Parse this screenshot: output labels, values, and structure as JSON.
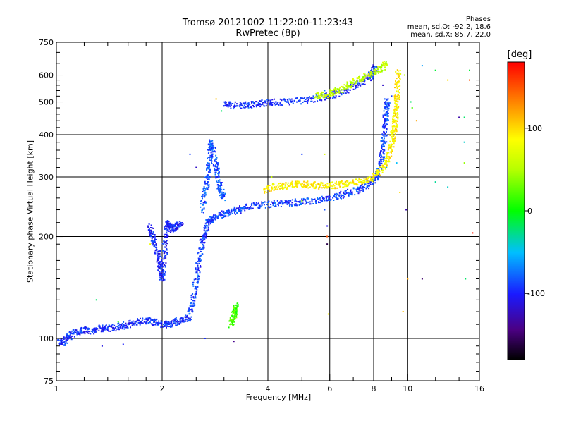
{
  "chart_data": {
    "type": "scatter",
    "title": "Tromsø 20121002 11:22:00-11:23:43",
    "subtitle": "RwPretec (8p)",
    "xlabel": "Frequency [MHz]",
    "ylabel": "Stationary phase Virtual Height [km]",
    "x_scale": "log",
    "y_scale": "log",
    "xlim": [
      1,
      16
    ],
    "ylim": [
      75,
      750
    ],
    "x_ticks": [
      1,
      2,
      4,
      6,
      8,
      10,
      16
    ],
    "y_ticks": [
      75,
      100,
      200,
      300,
      400,
      500,
      600,
      750
    ],
    "grid_x": [
      2,
      4,
      6,
      8,
      10
    ],
    "grid_y": [
      100,
      200,
      300,
      400,
      500,
      600
    ],
    "grid": true,
    "stats": {
      "heading": "Phases",
      "line_o": "mean, sd,O: -92.2, 18.6",
      "line_x": "mean, sd,X: 85.7, 22.0"
    },
    "colorbar": {
      "label": "[deg]",
      "range": [
        -180,
        180
      ],
      "ticks": [
        100,
        0,
        -100
      ],
      "colormap": "rainbow"
    },
    "traces": [
      {
        "phase": -95,
        "points": [
          [
            1.02,
            98
          ],
          [
            1.05,
            97
          ],
          [
            1.08,
            101
          ],
          [
            1.12,
            104
          ],
          [
            1.18,
            106
          ],
          [
            1.25,
            105
          ],
          [
            1.32,
            107
          ],
          [
            1.4,
            107
          ],
          [
            1.5,
            108
          ],
          [
            1.6,
            110
          ],
          [
            1.7,
            112
          ],
          [
            1.8,
            113
          ],
          [
            1.9,
            112
          ],
          [
            2.0,
            110
          ],
          [
            2.1,
            110
          ],
          [
            2.2,
            112
          ],
          [
            2.3,
            114
          ],
          [
            2.4,
            115
          ]
        ]
      },
      {
        "phase": -90,
        "points": [
          [
            2.4,
            118
          ],
          [
            2.45,
            130
          ],
          [
            2.5,
            150
          ],
          [
            2.55,
            170
          ],
          [
            2.6,
            190
          ],
          [
            2.65,
            205
          ],
          [
            2.7,
            220
          ],
          [
            2.8,
            228
          ],
          [
            2.95,
            232
          ],
          [
            3.1,
            235
          ],
          [
            3.3,
            240
          ],
          [
            3.5,
            245
          ],
          [
            3.8,
            248
          ],
          [
            4.2,
            250
          ],
          [
            4.6,
            252
          ],
          [
            5.0,
            253
          ],
          [
            5.5,
            256
          ],
          [
            6.0,
            260
          ],
          [
            6.5,
            266
          ],
          [
            7.0,
            272
          ],
          [
            7.5,
            280
          ],
          [
            8.0,
            292
          ],
          [
            8.2,
            305
          ],
          [
            8.4,
            330
          ],
          [
            8.5,
            360
          ],
          [
            8.6,
            400
          ],
          [
            8.65,
            440
          ],
          [
            8.7,
            480
          ],
          [
            8.75,
            510
          ]
        ]
      },
      {
        "phase": -100,
        "points": [
          [
            1.85,
            215
          ],
          [
            1.88,
            200
          ],
          [
            1.92,
            185
          ],
          [
            1.96,
            170
          ],
          [
            1.98,
            160
          ],
          [
            2.0,
            150
          ],
          [
            2.03,
            175
          ],
          [
            2.05,
            200
          ],
          [
            2.08,
            220
          ],
          [
            2.1,
            215
          ],
          [
            2.15,
            210
          ],
          [
            2.2,
            215
          ],
          [
            2.28,
            218
          ]
        ]
      },
      {
        "phase": -85,
        "points": [
          [
            2.6,
            240
          ],
          [
            2.65,
            270
          ],
          [
            2.7,
            300
          ],
          [
            2.72,
            330
          ],
          [
            2.75,
            380
          ],
          [
            2.8,
            360
          ],
          [
            2.85,
            320
          ],
          [
            2.9,
            290
          ],
          [
            2.95,
            270
          ],
          [
            3.0,
            260
          ]
        ]
      },
      {
        "phase": -95,
        "points": [
          [
            3.0,
            490
          ],
          [
            3.2,
            488
          ],
          [
            3.5,
            490
          ],
          [
            3.8,
            495
          ],
          [
            4.1,
            498
          ],
          [
            4.5,
            500
          ],
          [
            5.0,
            505
          ],
          [
            5.5,
            512
          ],
          [
            6.0,
            520
          ],
          [
            6.5,
            535
          ],
          [
            7.0,
            555
          ],
          [
            7.5,
            575
          ],
          [
            7.8,
            595
          ],
          [
            8.0,
            615
          ],
          [
            8.1,
            630
          ]
        ]
      },
      {
        "phase": 90,
        "points": [
          [
            3.9,
            275
          ],
          [
            4.2,
            280
          ],
          [
            4.5,
            283
          ],
          [
            4.8,
            285
          ],
          [
            5.2,
            285
          ],
          [
            5.6,
            283
          ],
          [
            6.0,
            283
          ],
          [
            6.5,
            285
          ],
          [
            7.0,
            288
          ],
          [
            7.5,
            293
          ],
          [
            8.0,
            300
          ],
          [
            8.5,
            315
          ],
          [
            8.8,
            340
          ],
          [
            9.0,
            370
          ],
          [
            9.1,
            400
          ],
          [
            9.2,
            430
          ],
          [
            9.25,
            460
          ],
          [
            9.3,
            500
          ],
          [
            9.35,
            560
          ],
          [
            9.4,
            620
          ]
        ]
      },
      {
        "phase": 55,
        "points": [
          [
            5.5,
            520
          ],
          [
            5.8,
            525
          ],
          [
            6.2,
            535
          ],
          [
            6.6,
            550
          ],
          [
            7.0,
            570
          ],
          [
            7.5,
            590
          ],
          [
            8.0,
            610
          ],
          [
            8.4,
            630
          ],
          [
            8.7,
            650
          ]
        ]
      },
      {
        "phase": 20,
        "points": [
          [
            3.15,
            110
          ],
          [
            3.18,
            115
          ],
          [
            3.22,
            120
          ],
          [
            3.25,
            125
          ]
        ]
      }
    ],
    "scatter_points": [
      {
        "x": 2.85,
        "y": 510,
        "phase": 110
      },
      {
        "x": 2.95,
        "y": 470,
        "phase": -20
      },
      {
        "x": 2.75,
        "y": 380,
        "phase": -60
      },
      {
        "x": 3.2,
        "y": 98,
        "phase": -140
      },
      {
        "x": 5.0,
        "y": 350,
        "phase": -90
      },
      {
        "x": 5.8,
        "y": 350,
        "phase": 70
      },
      {
        "x": 5.8,
        "y": 240,
        "phase": -85
      },
      {
        "x": 5.9,
        "y": 215,
        "phase": -110
      },
      {
        "x": 5.9,
        "y": 200,
        "phase": 150
      },
      {
        "x": 5.9,
        "y": 190,
        "phase": -160
      },
      {
        "x": 5.95,
        "y": 118,
        "phase": 90
      },
      {
        "x": 5.0,
        "y": 255,
        "phase": 30
      },
      {
        "x": 8.7,
        "y": 320,
        "phase": -60
      },
      {
        "x": 9.9,
        "y": 240,
        "phase": -130
      },
      {
        "x": 10.0,
        "y": 150,
        "phase": 120
      },
      {
        "x": 9.7,
        "y": 120,
        "phase": 110
      },
      {
        "x": 9.8,
        "y": 600,
        "phase": 50
      },
      {
        "x": 10.2,
        "y": 500,
        "phase": -20
      },
      {
        "x": 10.3,
        "y": 480,
        "phase": 20
      },
      {
        "x": 10.6,
        "y": 440,
        "phase": 120
      },
      {
        "x": 11.0,
        "y": 640,
        "phase": -60
      },
      {
        "x": 11.0,
        "y": 150,
        "phase": -150
      },
      {
        "x": 12.0,
        "y": 620,
        "phase": -10
      },
      {
        "x": 12.0,
        "y": 290,
        "phase": -30
      },
      {
        "x": 13.0,
        "y": 580,
        "phase": 100
      },
      {
        "x": 13.0,
        "y": 280,
        "phase": -40
      },
      {
        "x": 14.0,
        "y": 450,
        "phase": -130
      },
      {
        "x": 14.5,
        "y": 450,
        "phase": -20
      },
      {
        "x": 14.5,
        "y": 380,
        "phase": -40
      },
      {
        "x": 14.5,
        "y": 330,
        "phase": 40
      },
      {
        "x": 14.6,
        "y": 150,
        "phase": -20
      },
      {
        "x": 15.0,
        "y": 620,
        "phase": -10
      },
      {
        "x": 15.0,
        "y": 580,
        "phase": 150
      },
      {
        "x": 15.3,
        "y": 205,
        "phase": 170
      },
      {
        "x": 1.85,
        "y": 190,
        "phase": 80
      },
      {
        "x": 1.3,
        "y": 130,
        "phase": -20
      },
      {
        "x": 1.5,
        "y": 112,
        "phase": 10
      },
      {
        "x": 2.5,
        "y": 320,
        "phase": -120
      },
      {
        "x": 1.35,
        "y": 95,
        "phase": -110
      },
      {
        "x": 1.55,
        "y": 96,
        "phase": -100
      },
      {
        "x": 2.65,
        "y": 100,
        "phase": -95
      },
      {
        "x": 8.5,
        "y": 560,
        "phase": -120
      },
      {
        "x": 9.0,
        "y": 520,
        "phase": -90
      },
      {
        "x": 9.3,
        "y": 330,
        "phase": -50
      },
      {
        "x": 9.5,
        "y": 270,
        "phase": 100
      },
      {
        "x": 4.1,
        "y": 300,
        "phase": 60
      },
      {
        "x": 5.8,
        "y": 540,
        "phase": -70
      },
      {
        "x": 2.4,
        "y": 350,
        "phase": -90
      }
    ]
  }
}
